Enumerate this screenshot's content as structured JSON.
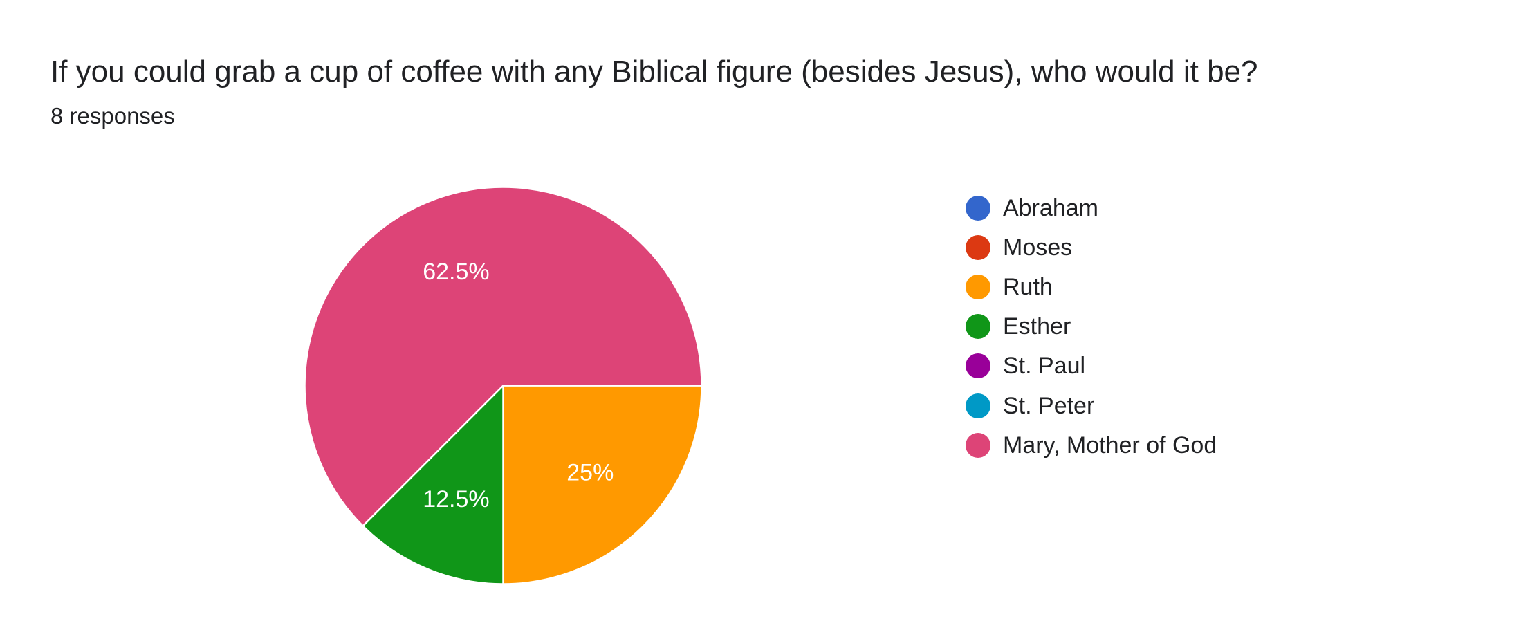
{
  "question": {
    "title": "If you could grab a cup of coffee with any Biblical figure (besides Jesus), who would it be?",
    "responses": "8 responses"
  },
  "chart_data": {
    "type": "pie",
    "total_responses": 8,
    "slices": [
      {
        "name": "Abraham",
        "value": 0,
        "percent": 0,
        "label": "",
        "color": "#3366cc"
      },
      {
        "name": "Moses",
        "value": 0,
        "percent": 0,
        "label": "",
        "color": "#dc3912"
      },
      {
        "name": "Ruth",
        "value": 2,
        "percent": 25,
        "label": "25%",
        "color": "#ff9900"
      },
      {
        "name": "Esther",
        "value": 1,
        "percent": 12.5,
        "label": "12.5%",
        "color": "#109618"
      },
      {
        "name": "St. Paul",
        "value": 0,
        "percent": 0,
        "label": "",
        "color": "#990099"
      },
      {
        "name": "St. Peter",
        "value": 0,
        "percent": 0,
        "label": "",
        "color": "#0099c6"
      },
      {
        "name": "Mary, Mother of God",
        "value": 5,
        "percent": 62.5,
        "label": "62.5%",
        "color": "#dd4477"
      }
    ],
    "start_angle_deg": 90,
    "direction": "clockwise",
    "legend_position": "right"
  }
}
